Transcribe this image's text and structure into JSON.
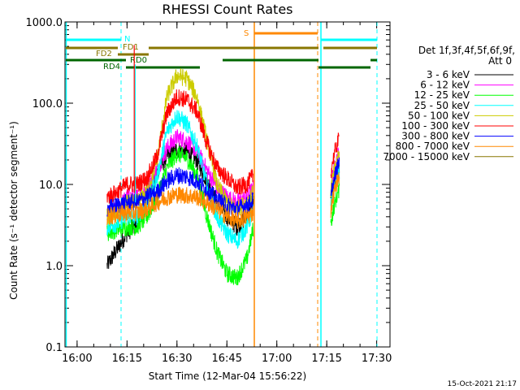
{
  "chart_data": {
    "type": "line",
    "title": "RHESSI Count Rates",
    "xlabel": "Start Time (12-Mar-04 15:56:22)",
    "ylabel": "Count Rate (s⁻¹ detector segment⁻¹)",
    "yscale": "log",
    "ylim": [
      0.1,
      1000
    ],
    "xlim": [
      "15:56:22",
      "17:34:00"
    ],
    "x_tick_labels": [
      "16:00",
      "16:15",
      "16:30",
      "16:45",
      "17:00",
      "17:15",
      "17:30"
    ],
    "y_tick_labels": [
      "0.1",
      "1.0",
      "10.0",
      "100.0",
      "1000.0"
    ],
    "legend_title": "Det 1f,3f,4f,5f,6f,9f,",
    "legend_subtitle": "Att 0",
    "legend_position": "right",
    "series": [
      {
        "name": "3 - 6 keV",
        "color": "#000000",
        "x": [
          "16:09",
          "16:12",
          "16:15",
          "16:18",
          "16:21",
          "16:24",
          "16:27",
          "16:30",
          "16:33",
          "16:36",
          "16:39",
          "16:42",
          "16:45",
          "16:48",
          "16:51",
          "16:53"
        ],
        "values": [
          1.0,
          1.6,
          2.5,
          3.3,
          6,
          14,
          22,
          27,
          25,
          20,
          11,
          6,
          4,
          3,
          4,
          6
        ]
      },
      {
        "name": "6 - 12 keV",
        "color": "#ff00ff",
        "x": [
          "16:09",
          "16:12",
          "16:15",
          "16:18",
          "16:21",
          "16:24",
          "16:27",
          "16:30",
          "16:33",
          "16:36",
          "16:39",
          "16:42",
          "16:45",
          "16:48",
          "16:51",
          "16:53"
        ],
        "values": [
          4,
          5,
          7,
          7,
          9,
          15,
          28,
          38,
          34,
          26,
          15,
          9,
          7,
          6,
          7,
          9
        ]
      },
      {
        "name": "12 - 25 keV",
        "color": "#00ff00",
        "x": [
          "16:09",
          "16:12",
          "16:15",
          "16:18",
          "16:21",
          "16:24",
          "16:27",
          "16:30",
          "16:33",
          "16:36",
          "16:39",
          "16:42",
          "16:45",
          "16:48",
          "16:51",
          "16:53"
        ],
        "values": [
          2.5,
          2.8,
          3,
          3,
          4,
          7,
          16,
          24,
          21,
          13,
          4,
          1.5,
          0.8,
          0.7,
          1.2,
          3
        ]
      },
      {
        "name": "25 - 50 keV",
        "color": "#00ffff",
        "x": [
          "16:09",
          "16:12",
          "16:15",
          "16:18",
          "16:21",
          "16:24",
          "16:27",
          "16:30",
          "16:33",
          "16:36",
          "16:39",
          "16:42",
          "16:45",
          "16:48",
          "16:51",
          "16:53"
        ],
        "values": [
          3,
          3.3,
          4,
          4,
          6,
          12,
          45,
          70,
          55,
          30,
          10,
          4,
          2.5,
          2,
          3,
          5
        ]
      },
      {
        "name": "50 - 100 keV",
        "color": "#cccc00",
        "x": [
          "16:09",
          "16:12",
          "16:15",
          "16:18",
          "16:21",
          "16:24",
          "16:27",
          "16:30",
          "16:33",
          "16:36",
          "16:39",
          "16:42",
          "16:45",
          "16:48",
          "16:51",
          "16:53"
        ],
        "values": [
          4,
          4.5,
          6,
          6,
          8,
          20,
          120,
          220,
          200,
          120,
          35,
          10,
          6,
          5,
          6,
          8
        ]
      },
      {
        "name": "100 - 300 keV",
        "color": "#ff0000",
        "x": [
          "16:09",
          "16:12",
          "16:15",
          "16:18",
          "16:21",
          "16:24",
          "16:27",
          "16:30",
          "16:33",
          "16:36",
          "16:39",
          "16:42",
          "16:45",
          "16:48",
          "16:51",
          "16:53"
        ],
        "values": [
          7,
          8,
          10,
          10,
          12,
          22,
          75,
          120,
          110,
          80,
          32,
          16,
          12,
          9,
          10,
          13
        ]
      },
      {
        "name": "300 - 800 keV",
        "color": "#0000ff",
        "x": [
          "16:09",
          "16:12",
          "16:15",
          "16:18",
          "16:21",
          "16:24",
          "16:27",
          "16:30",
          "16:33",
          "16:36",
          "16:39",
          "16:42",
          "16:45",
          "16:48",
          "16:51",
          "16:53"
        ],
        "values": [
          5,
          5.5,
          6,
          6,
          7,
          8,
          11,
          13,
          12.5,
          11,
          8.5,
          6.5,
          5.5,
          5,
          5.5,
          6.5
        ]
      },
      {
        "name": "800 - 7000 keV",
        "color": "#ff8800",
        "x": [
          "16:09",
          "16:12",
          "16:15",
          "16:18",
          "16:21",
          "16:24",
          "16:27",
          "16:30",
          "16:33",
          "16:36",
          "16:39",
          "16:42",
          "16:45",
          "16:48",
          "16:51",
          "16:53"
        ],
        "values": [
          4,
          4.2,
          4.5,
          4.5,
          5,
          6,
          7,
          7.5,
          7.3,
          7,
          6,
          5,
          4,
          3.5,
          4,
          4.5
        ]
      },
      {
        "name": "7000 - 15000 keV",
        "color": "#887700",
        "x": [],
        "values": []
      }
    ],
    "flags": [
      {
        "label": "N",
        "color": "#00ffff"
      },
      {
        "label": "FD1",
        "color": "#887700"
      },
      {
        "label": "FD2",
        "color": "#887700"
      },
      {
        "label": "RD0",
        "color": "#006600"
      },
      {
        "label": "RD4",
        "color": "#006600"
      },
      {
        "label": "S",
        "color": "#ff8800"
      }
    ],
    "grid": false
  },
  "footer": {
    "timestamp": "15-Oct-2021 21:17"
  }
}
